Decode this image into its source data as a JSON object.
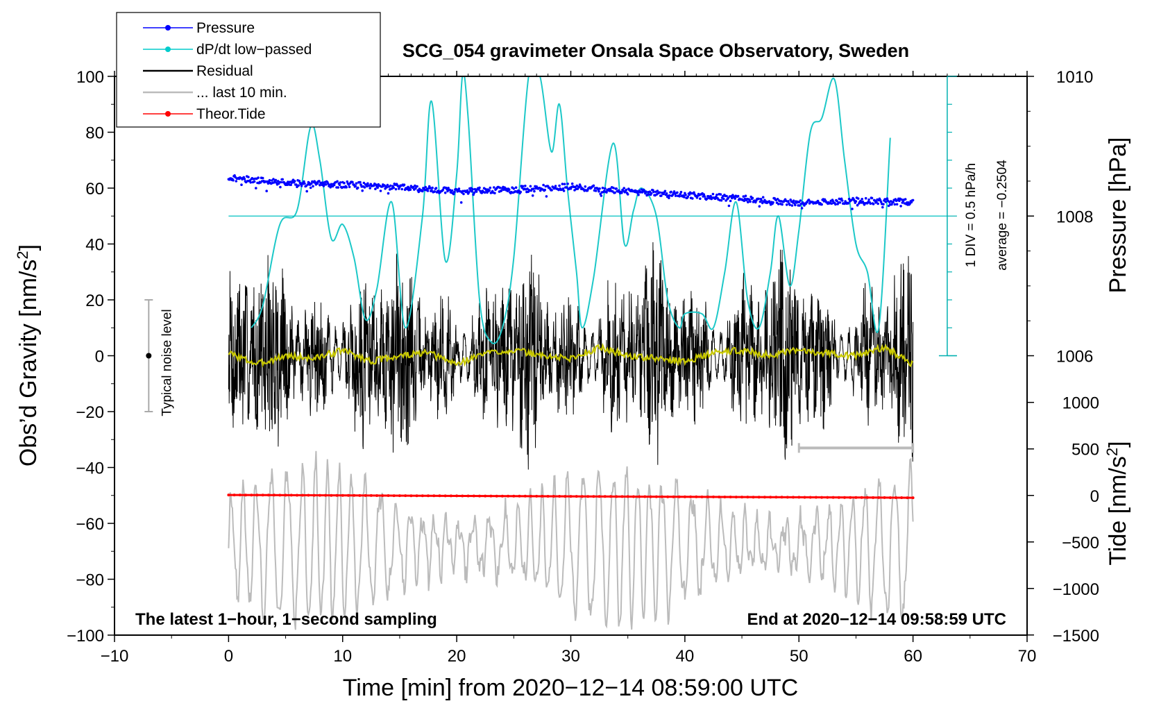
{
  "chart_data": {
    "type": "line",
    "title": "SCG_054 gravimeter Onsala Space Observatory, Sweden",
    "xlabel": "Time [min] from 2020−12−14 08:59:00 UTC",
    "ylabel_main": "Obs’d Gravity [nm/s",
    "ylabel_sup": "2",
    "ylabel_close": "]",
    "ylabel_pressure": "Pressure [hPa]",
    "ylabel_tide": "Tide [nm/s",
    "xlim": [
      -10,
      70
    ],
    "ylim": [
      -100,
      100
    ],
    "x_ticks": [
      "−10",
      "0",
      "10",
      "20",
      "30",
      "40",
      "50",
      "60",
      "70"
    ],
    "y_ticks": [
      "−100",
      "−80",
      "−60",
      "−40",
      "−20",
      "0",
      "20",
      "40",
      "60",
      "80",
      "100"
    ],
    "pressure_ticks": [
      "1010",
      "1008",
      "1006"
    ],
    "pressure_tick_values": [
      1010,
      1008,
      1006
    ],
    "tide_ticks": [
      "1000",
      "500",
      "0",
      "−500",
      "−1000",
      "−1500"
    ],
    "tide_tick_values": [
      1000,
      500,
      0,
      -500,
      -1000,
      -1500
    ],
    "pressure_scale": {
      "ref_value": 1008,
      "ref_gravity": 50,
      "gravity_per_hpa": 25
    },
    "tide_scale": {
      "ref_value": 0,
      "ref_gravity": -50,
      "gravity_per_unit": 0.0333
    },
    "legend": [
      {
        "label": "Pressure",
        "color": "#0000ff",
        "style": "line-dot"
      },
      {
        "label": "dP/dt low−passed",
        "color": "#00cccc",
        "style": "line-dot"
      },
      {
        "label": "Residual",
        "color": "#000000",
        "style": "line"
      },
      {
        "label": "... last 10 min.",
        "color": "#bbbbbb",
        "style": "line"
      },
      {
        "label": "Theor.Tide",
        "color": "#ff0000",
        "style": "line-dot"
      }
    ],
    "series": [
      {
        "name": "Pressure",
        "axis": "pressure_hPa",
        "color": "#0000ff",
        "x": [
          0,
          5,
          10,
          15,
          20,
          25,
          30,
          35,
          40,
          45,
          50,
          55,
          60
        ],
        "values": [
          1008.55,
          1008.48,
          1008.45,
          1008.42,
          1008.35,
          1008.38,
          1008.42,
          1008.35,
          1008.3,
          1008.25,
          1008.18,
          1008.22,
          1008.2
        ]
      },
      {
        "name": "dP/dt low−passed",
        "axis": "gravity",
        "color": "#00cccc",
        "x": [
          2,
          3,
          4.5,
          6,
          7.2,
          8,
          9,
          10,
          11,
          12,
          13,
          14.3,
          15.5,
          17,
          17.8,
          19,
          20,
          20.5,
          21,
          22,
          23,
          24,
          25,
          26.3,
          27.3,
          28.3,
          29,
          29.7,
          30.5,
          31,
          32,
          33.7,
          34.7,
          35.5,
          36.2,
          37.5,
          38.5,
          39.5,
          40,
          41.5,
          42.5,
          43.5,
          44.5,
          45.5,
          46.5,
          47.5,
          48.2,
          49.2,
          50,
          51,
          52,
          53.1,
          54,
          55,
          56,
          57,
          58
        ],
        "values": [
          10,
          18,
          47,
          52,
          82,
          70,
          42,
          47,
          35,
          13,
          24,
          55,
          10,
          50,
          91,
          34,
          65,
          100,
          85,
          20,
          5,
          10,
          35,
          100,
          100,
          73,
          90,
          60,
          30,
          10,
          28,
          76,
          40,
          52,
          60,
          50,
          20,
          10,
          15,
          15,
          10,
          30,
          55,
          20,
          10,
          30,
          50,
          25,
          45,
          80,
          85,
          99,
          70,
          40,
          30,
          10,
          78
        ]
      },
      {
        "name": "Residual low−passed",
        "axis": "gravity",
        "color": "#c8c800",
        "x": [
          0,
          2.5,
          5,
          7.5,
          10,
          12.5,
          15,
          17.5,
          20,
          22.5,
          25,
          27.5,
          30,
          32.5,
          35,
          37.5,
          40,
          42.5,
          45,
          47.5,
          50,
          52.5,
          55,
          57.5,
          60
        ],
        "values": [
          1,
          -3,
          0,
          -1,
          2,
          -2,
          0,
          1,
          -3,
          1,
          2,
          0,
          -1,
          3,
          0,
          -1,
          -2,
          1,
          2,
          0,
          2,
          1,
          0,
          3,
          -3
        ]
      },
      {
        "name": "Theor.Tide",
        "axis": "tide_nm_s2",
        "color": "#ff0000",
        "x": [
          0,
          60
        ],
        "values": [
          5,
          -25
        ]
      }
    ],
    "noise_bar": {
      "x": -7,
      "range": [
        -20,
        20
      ],
      "label": "Typical noise level"
    },
    "last10_bar": {
      "x_range": [
        50,
        60
      ],
      "y": -33
    },
    "annotation_div": "1 DIV = 0.5 hPa/h",
    "annotation_avg": "average = −0.2504",
    "note_left": "The latest 1−hour, 1−second sampling",
    "note_right": "End at 2020−12−14 09:58:59 UTC"
  }
}
